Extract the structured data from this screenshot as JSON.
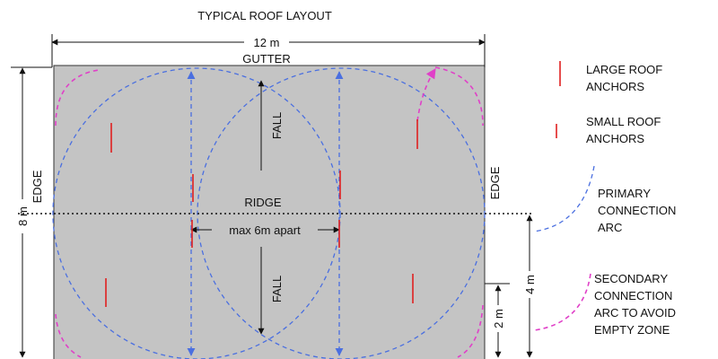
{
  "title": "TYPICAL ROOF LAYOUT",
  "dimensions": {
    "width": "12 m",
    "height": "8 m",
    "ridge_to_anchor": "4 m",
    "anchor_to_edge": "2 m",
    "anchor_spacing": "max 6m apart"
  },
  "roof_labels": {
    "gutter": "GUTTER",
    "ridge": "RIDGE",
    "edge_left": "EDGE",
    "edge_right": "EDGE",
    "fall_top": "FALL",
    "fall_bottom": "FALL"
  },
  "legend": [
    {
      "lines": [
        "LARGE ROOF",
        "ANCHORS"
      ]
    },
    {
      "lines": [
        "SMALL ROOF",
        "ANCHORS"
      ]
    },
    {
      "lines": [
        "PRIMARY",
        "CONNECTION",
        "ARC"
      ]
    },
    {
      "lines": [
        "SECONDARY",
        "CONNECTION",
        "ARC TO AVOID",
        "EMPTY ZONE"
      ]
    }
  ]
}
